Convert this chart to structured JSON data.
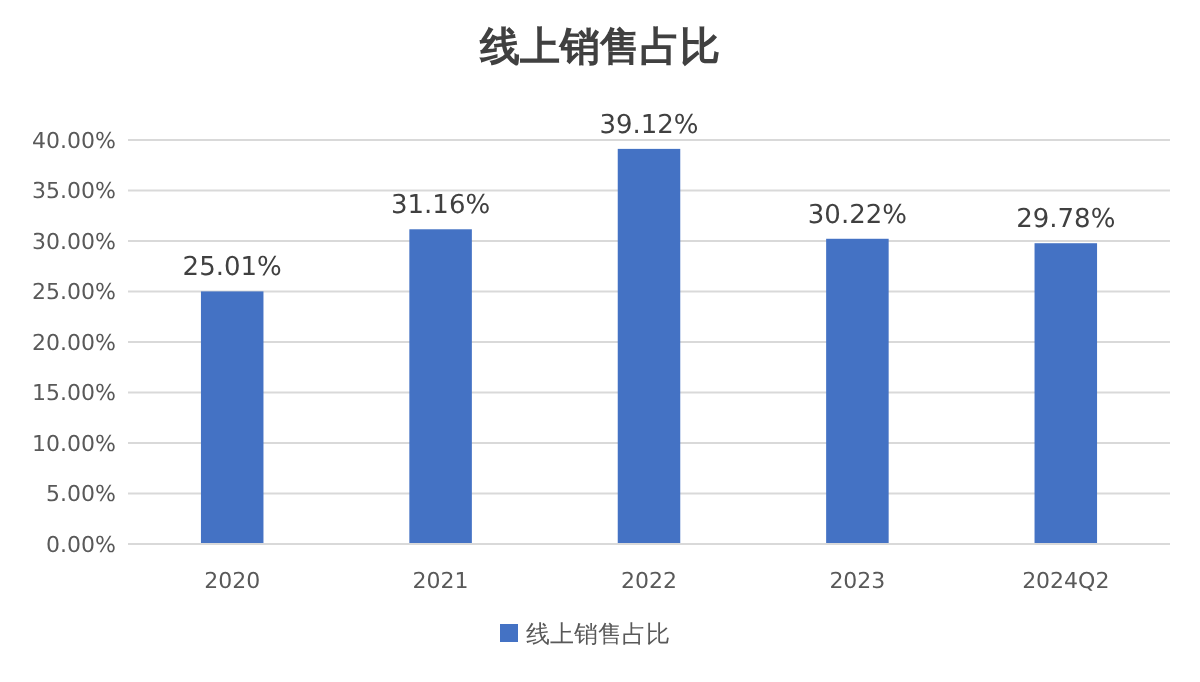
{
  "chart_data": {
    "type": "bar",
    "title": "线上销售占比",
    "categories": [
      "2020",
      "2021",
      "2022",
      "2023",
      "2024Q2"
    ],
    "series": [
      {
        "name": "线上销售占比",
        "color": "#4472c4",
        "values": [
          25.01,
          31.16,
          39.12,
          30.22,
          29.78
        ],
        "value_labels": [
          "25.01%",
          "31.16%",
          "39.12%",
          "30.22%",
          "29.78%"
        ]
      }
    ],
    "ylim": [
      0,
      40
    ],
    "yticks": [
      {
        "value": 0,
        "label": "0.00%"
      },
      {
        "value": 5,
        "label": "5.00%"
      },
      {
        "value": 10,
        "label": "10.00%"
      },
      {
        "value": 15,
        "label": "15.00%"
      },
      {
        "value": 20,
        "label": "20.00%"
      },
      {
        "value": 25,
        "label": "25.00%"
      },
      {
        "value": 30,
        "label": "30.00%"
      },
      {
        "value": 35,
        "label": "35.00%"
      },
      {
        "value": 40,
        "label": "40.00%"
      }
    ],
    "grid": "y",
    "legend": "bottom"
  }
}
